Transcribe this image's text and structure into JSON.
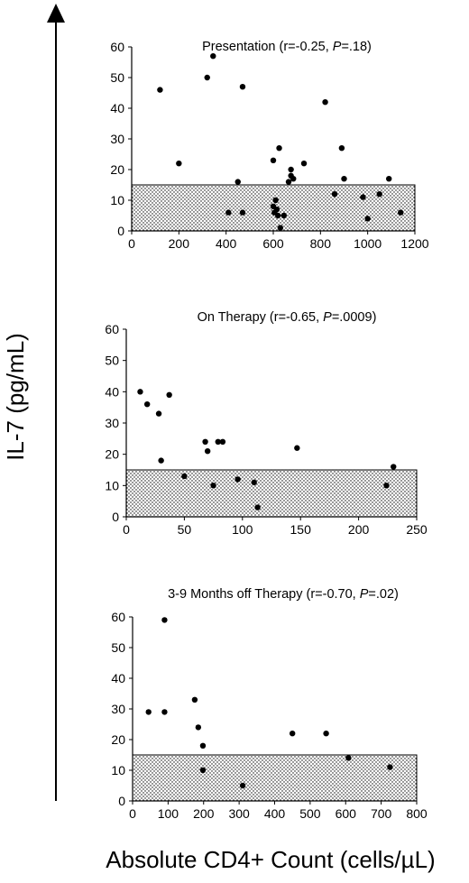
{
  "figure": {
    "ylabel": "IL-7 (pg/mL)",
    "xlabel": "Absolute CD4+ Count (cells/µL)"
  },
  "chart_data": [
    {
      "type": "scatter",
      "title": "Presentation (r=-0.25, P=.18)",
      "title_parts": {
        "pre": "Presentation (r=-0.25, ",
        "p": "P",
        "post": "=.18)"
      },
      "xlim": [
        0,
        1200
      ],
      "ylim": [
        0,
        60
      ],
      "xticks": [
        0,
        200,
        400,
        600,
        800,
        1000,
        1200
      ],
      "yticks": [
        0,
        10,
        20,
        30,
        40,
        50,
        60
      ],
      "shaded_band": [
        0,
        15
      ],
      "points": [
        [
          120,
          46
        ],
        [
          200,
          22
        ],
        [
          320,
          50
        ],
        [
          345,
          57
        ],
        [
          410,
          6
        ],
        [
          450,
          16
        ],
        [
          470,
          47
        ],
        [
          470,
          6
        ],
        [
          600,
          23
        ],
        [
          600,
          8
        ],
        [
          605,
          6
        ],
        [
          610,
          10
        ],
        [
          615,
          7
        ],
        [
          620,
          5
        ],
        [
          625,
          27
        ],
        [
          630,
          1
        ],
        [
          645,
          5
        ],
        [
          665,
          16
        ],
        [
          675,
          20
        ],
        [
          675,
          18
        ],
        [
          685,
          17
        ],
        [
          730,
          22
        ],
        [
          820,
          42
        ],
        [
          860,
          12
        ],
        [
          890,
          27
        ],
        [
          900,
          17
        ],
        [
          980,
          11
        ],
        [
          1000,
          4
        ],
        [
          1050,
          12
        ],
        [
          1090,
          17
        ],
        [
          1140,
          6
        ]
      ]
    },
    {
      "type": "scatter",
      "title": "On Therapy (r=-0.65, P=.0009)",
      "title_parts": {
        "pre": "On Therapy (r=-0.65, ",
        "p": "P",
        "post": "=.0009)"
      },
      "xlim": [
        0,
        250
      ],
      "ylim": [
        0,
        60
      ],
      "xticks": [
        0,
        50,
        100,
        150,
        200,
        250
      ],
      "yticks": [
        0,
        10,
        20,
        30,
        40,
        50,
        60
      ],
      "shaded_band": [
        0,
        15
      ],
      "points": [
        [
          12,
          40
        ],
        [
          18,
          36
        ],
        [
          28,
          33
        ],
        [
          30,
          18
        ],
        [
          37,
          39
        ],
        [
          50,
          13
        ],
        [
          68,
          24
        ],
        [
          70,
          21
        ],
        [
          75,
          10
        ],
        [
          79,
          24
        ],
        [
          83,
          24
        ],
        [
          96,
          12
        ],
        [
          110,
          11
        ],
        [
          113,
          3
        ],
        [
          147,
          22
        ],
        [
          224,
          10
        ],
        [
          230,
          16
        ]
      ]
    },
    {
      "type": "scatter",
      "title": "3-9 Months off Therapy (r=-0.70, P=.02)",
      "title_parts": {
        "pre": "3-9 Months off Therapy (r=-0.70, ",
        "p": "P",
        "post": "=.02)"
      },
      "xlim": [
        0,
        800
      ],
      "ylim": [
        0,
        60
      ],
      "xticks": [
        0,
        100,
        200,
        300,
        400,
        500,
        600,
        700,
        800
      ],
      "yticks": [
        0,
        10,
        20,
        30,
        40,
        50,
        60
      ],
      "shaded_band": [
        0,
        15
      ],
      "points": [
        [
          45,
          29
        ],
        [
          90,
          59
        ],
        [
          90,
          29
        ],
        [
          175,
          33
        ],
        [
          185,
          24
        ],
        [
          198,
          18
        ],
        [
          198,
          10
        ],
        [
          310,
          5
        ],
        [
          450,
          22
        ],
        [
          545,
          22
        ],
        [
          608,
          14
        ],
        [
          725,
          11
        ]
      ]
    }
  ]
}
